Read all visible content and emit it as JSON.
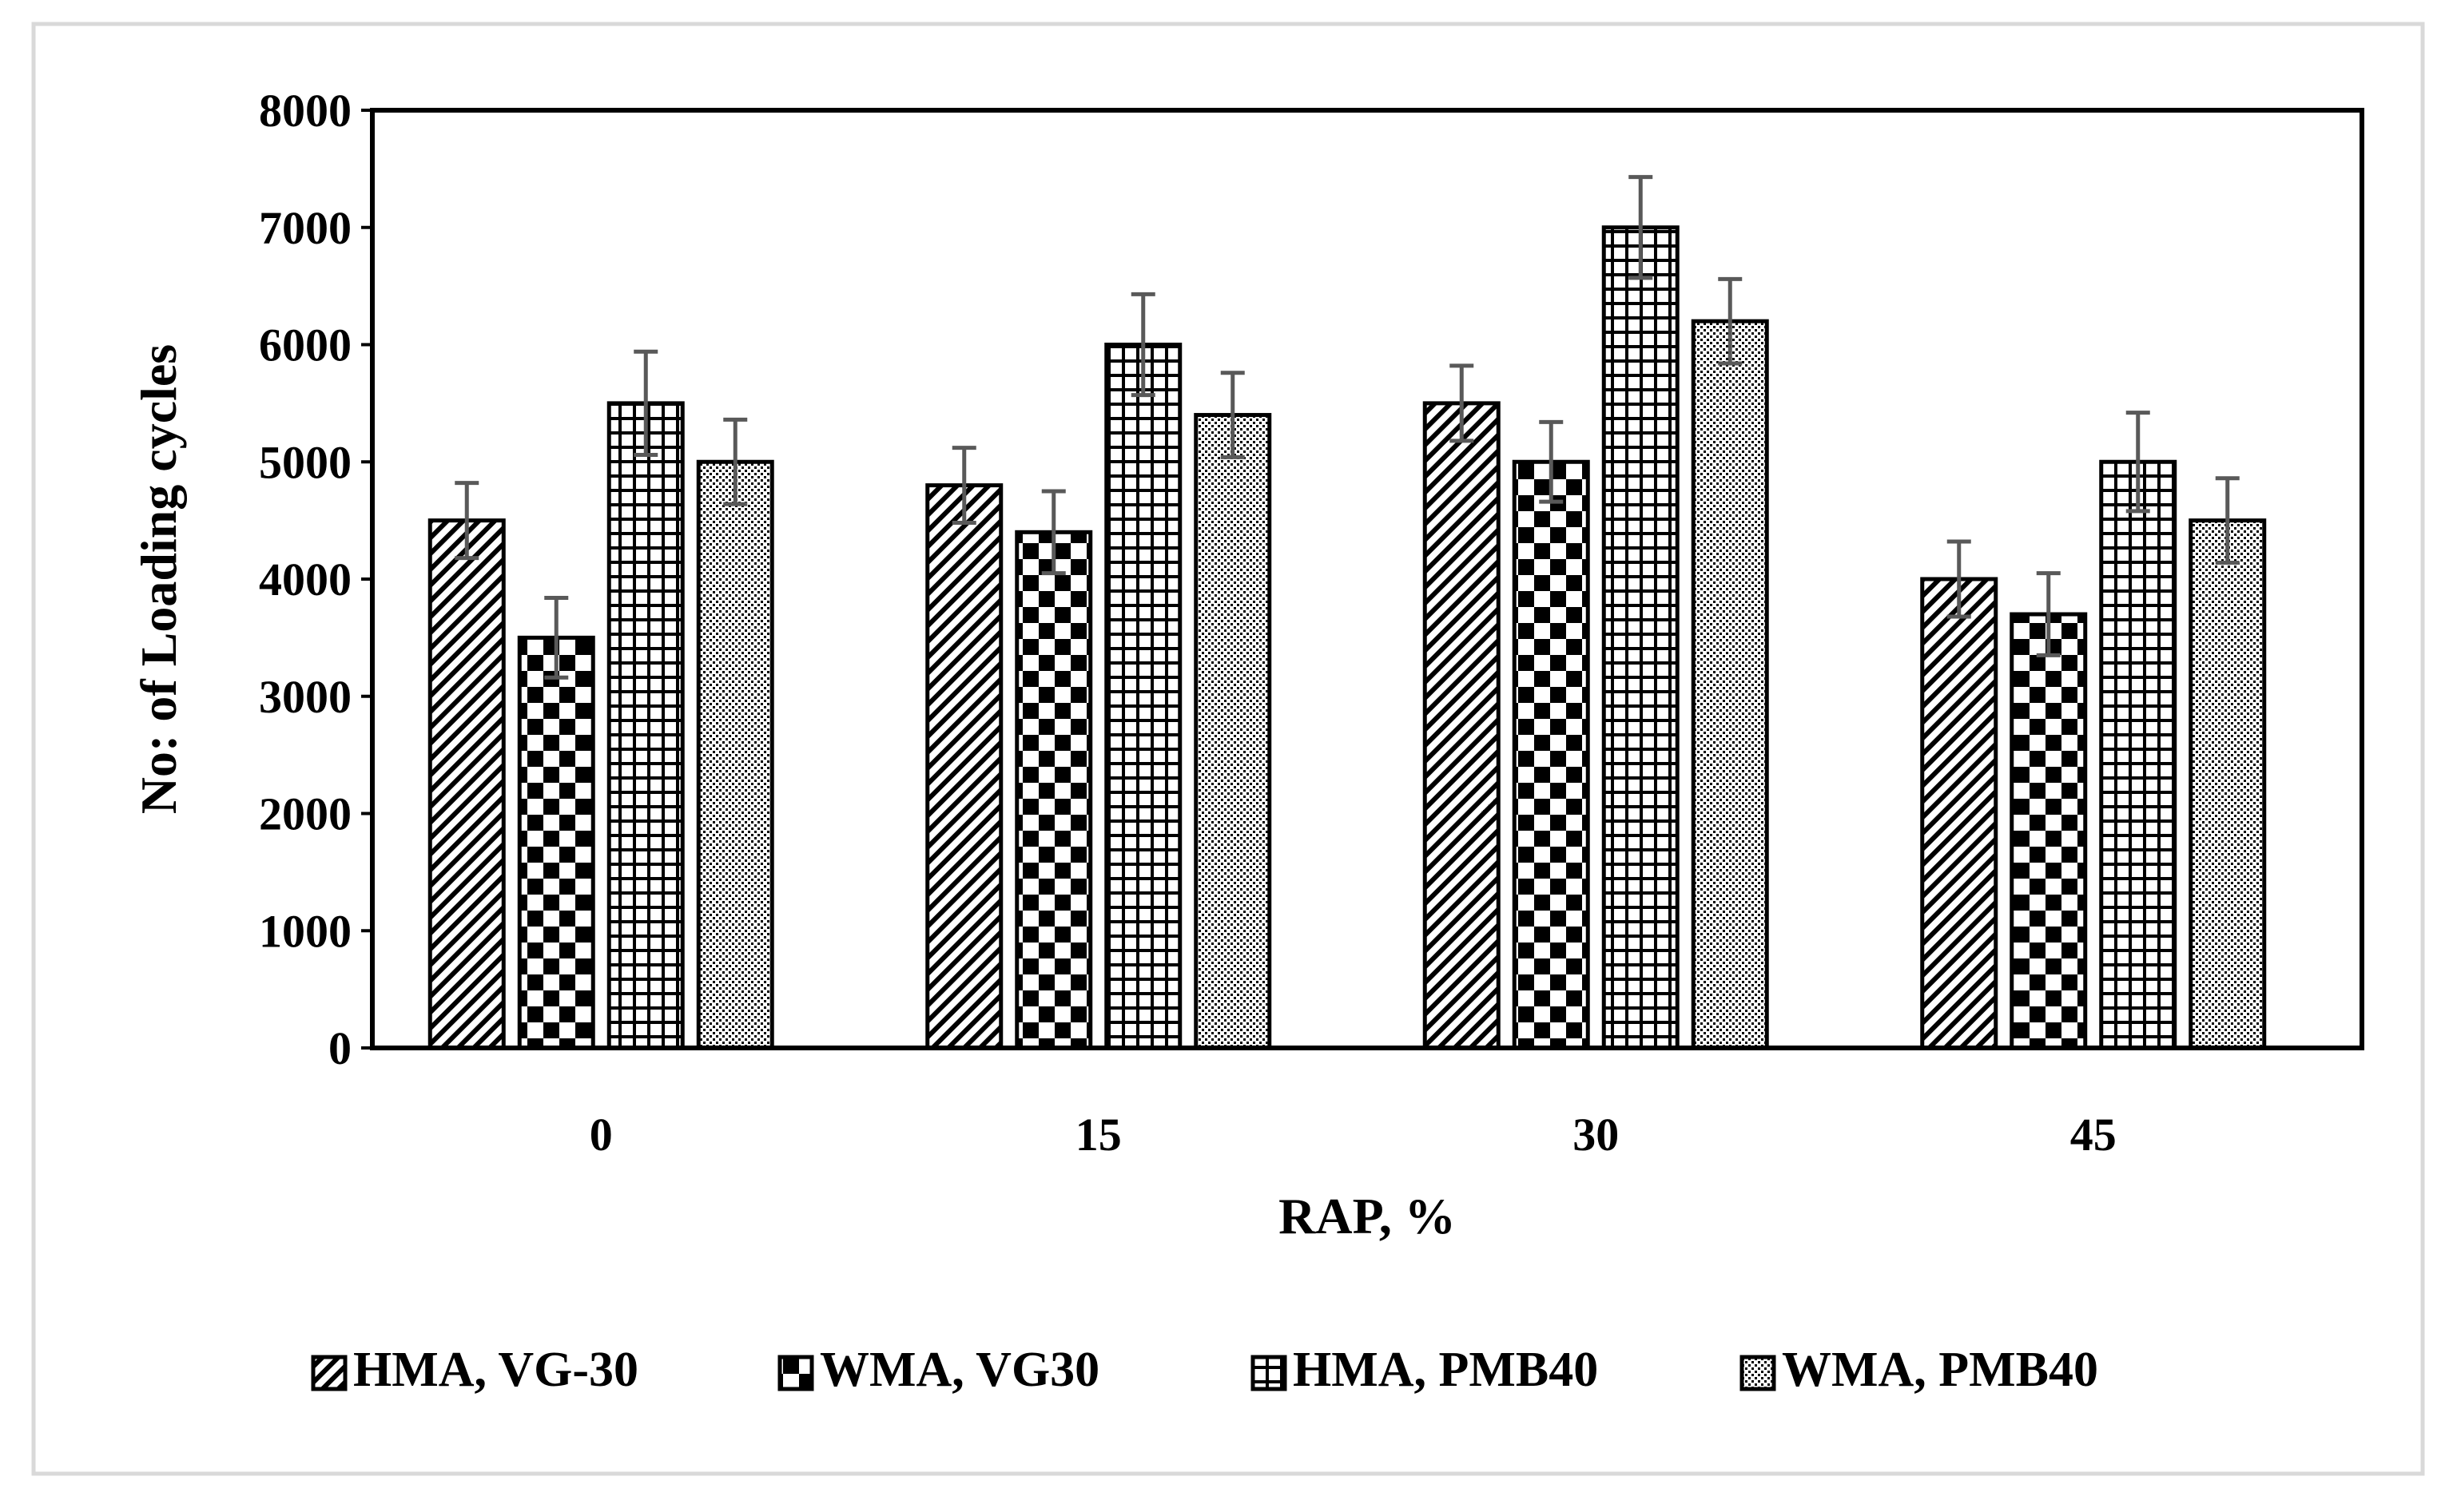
{
  "chart_data": {
    "type": "bar",
    "title": "",
    "xlabel": "RAP, %",
    "ylabel": "No: of Loading cycles",
    "categories": [
      "0",
      "15",
      "30",
      "45"
    ],
    "ylim": [
      0,
      8000
    ],
    "yticks": [
      "0",
      "1000",
      "2000",
      "3000",
      "4000",
      "5000",
      "6000",
      "7000",
      "8000"
    ],
    "grid": false,
    "legend_position": "bottom",
    "series": [
      {
        "name": "HMA, VG-30",
        "pattern": "diagonal-hatch",
        "values": [
          4500,
          4800,
          5500,
          4000
        ],
        "errors": [
          320,
          320,
          320,
          320
        ]
      },
      {
        "name": "WMA, VG30",
        "pattern": "checkerboard",
        "values": [
          3500,
          4400,
          5000,
          3700
        ],
        "errors": [
          340,
          350,
          340,
          350
        ]
      },
      {
        "name": "HMA, PMB40",
        "pattern": "grid",
        "values": [
          5500,
          6000,
          7000,
          5000
        ],
        "errors": [
          440,
          430,
          430,
          420
        ]
      },
      {
        "name": "WMA, PMB40",
        "pattern": "dots",
        "values": [
          5000,
          5400,
          6200,
          4500
        ],
        "errors": [
          360,
          360,
          360,
          360
        ]
      }
    ]
  },
  "colors": {
    "bar_fill": "#ffffff",
    "ink": "#000000",
    "error_bar": "#595959",
    "frame": "#d9d9d9"
  }
}
